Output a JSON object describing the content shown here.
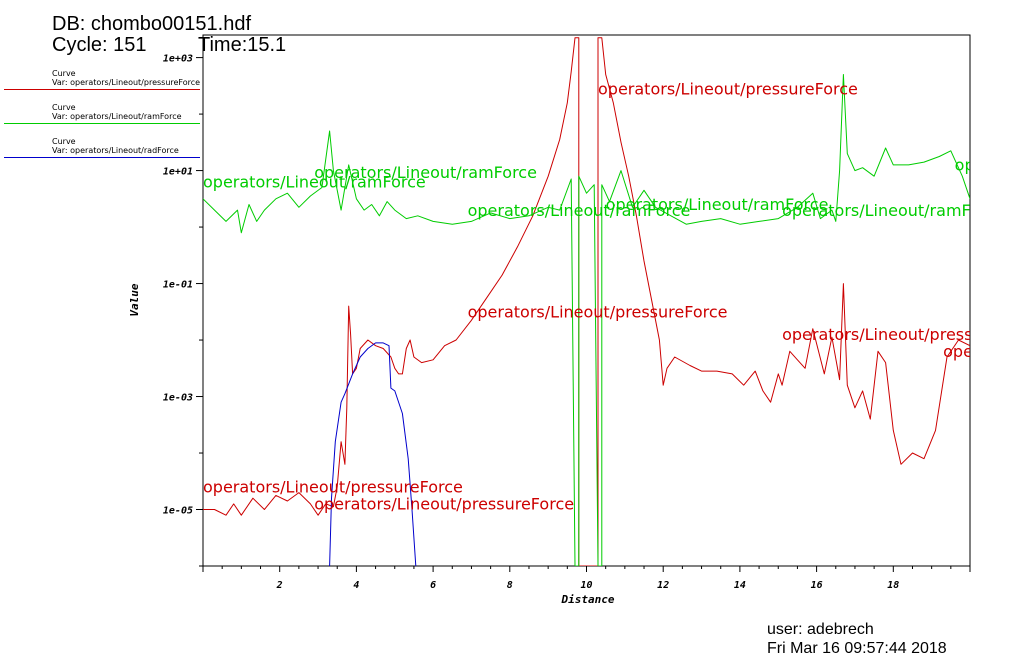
{
  "header": {
    "db_line": "DB: chombo00151.hdf",
    "cycle_line": "Cycle: 151",
    "time_line": "Time:15.1"
  },
  "legend": [
    {
      "kind": "Curve",
      "var": "Var: operators/Lineout/pressureForce",
      "color": "#ff0000"
    },
    {
      "kind": "Curve",
      "var": "Var: operators/Lineout/ramForce",
      "color": "#00ff00"
    },
    {
      "kind": "Curve",
      "var": "Var: operators/Lineout/radForce",
      "color": "#0000ff"
    }
  ],
  "footer": {
    "user": "user: adebrech",
    "date": "Fri Mar 16 09:57:44 2018"
  },
  "chart_data": {
    "type": "line",
    "xlabel": "Distance",
    "ylabel": "Value",
    "xlim": [
      0,
      20
    ],
    "ylog_range": [
      -6.0,
      3.4
    ],
    "yscale": "log",
    "x_ticks": [
      2,
      4,
      6,
      8,
      10,
      12,
      14,
      16,
      18
    ],
    "x_tick_labels": [
      "2",
      "4",
      "6",
      "8",
      "10",
      "12",
      "14",
      "16",
      "18"
    ],
    "y_ticks_log10": [
      3,
      1,
      -1,
      -3,
      -5
    ],
    "y_tick_labels": [
      "1e+03",
      "1e+01",
      "1e-01",
      "1e-03",
      "1e-05"
    ],
    "series": [
      {
        "name": "operators/Lineout/pressureForce",
        "color": "#cc0000",
        "points_log10": [
          [
            0,
            -5.0
          ],
          [
            0.3,
            -5.0
          ],
          [
            0.6,
            -5.1
          ],
          [
            0.8,
            -4.9
          ],
          [
            1.0,
            -5.1
          ],
          [
            1.3,
            -4.8
          ],
          [
            1.6,
            -5.0
          ],
          [
            1.9,
            -4.75
          ],
          [
            2.2,
            -4.85
          ],
          [
            2.5,
            -4.7
          ],
          [
            2.8,
            -4.9
          ],
          [
            3.0,
            -5.1
          ],
          [
            3.2,
            -4.9
          ],
          [
            3.4,
            -4.95
          ],
          [
            3.5,
            -4.6
          ],
          [
            3.6,
            -3.8
          ],
          [
            3.7,
            -4.2
          ],
          [
            3.75,
            -3.2
          ],
          [
            3.8,
            -1.4
          ],
          [
            3.85,
            -1.9
          ],
          [
            3.9,
            -2.6
          ],
          [
            4.0,
            -2.5
          ],
          [
            4.1,
            -2.15
          ],
          [
            4.3,
            -2.0
          ],
          [
            4.5,
            -2.1
          ],
          [
            4.7,
            -2.15
          ],
          [
            4.9,
            -2.3
          ],
          [
            5.0,
            -2.5
          ],
          [
            5.1,
            -2.6
          ],
          [
            5.2,
            -2.6
          ],
          [
            5.3,
            -2.15
          ],
          [
            5.4,
            -2.0
          ],
          [
            5.5,
            -2.3
          ],
          [
            5.7,
            -2.4
          ],
          [
            6.0,
            -2.35
          ],
          [
            6.3,
            -2.1
          ],
          [
            6.6,
            -2.0
          ],
          [
            7.0,
            -1.65
          ],
          [
            7.4,
            -1.25
          ],
          [
            7.8,
            -0.85
          ],
          [
            8.2,
            -0.35
          ],
          [
            8.6,
            0.2
          ],
          [
            9.0,
            0.9
          ],
          [
            9.3,
            1.55
          ],
          [
            9.5,
            2.2
          ],
          [
            9.6,
            2.75
          ],
          [
            9.7,
            3.35
          ],
          [
            9.8,
            3.35
          ],
          [
            9.8,
            -6.0
          ],
          [
            10.3,
            -6.0
          ],
          [
            10.3,
            3.35
          ],
          [
            10.4,
            3.35
          ],
          [
            10.5,
            2.7
          ],
          [
            10.7,
            2.2
          ],
          [
            10.9,
            1.5
          ],
          [
            11.1,
            0.9
          ],
          [
            11.3,
            0.2
          ],
          [
            11.5,
            -0.6
          ],
          [
            11.7,
            -1.3
          ],
          [
            11.9,
            -2.0
          ],
          [
            12.0,
            -2.8
          ],
          [
            12.1,
            -2.5
          ],
          [
            12.3,
            -2.3
          ],
          [
            12.7,
            -2.45
          ],
          [
            13.0,
            -2.55
          ],
          [
            13.4,
            -2.55
          ],
          [
            13.8,
            -2.6
          ],
          [
            14.1,
            -2.8
          ],
          [
            14.4,
            -2.55
          ],
          [
            14.6,
            -2.9
          ],
          [
            14.8,
            -3.1
          ],
          [
            15.0,
            -2.6
          ],
          [
            15.1,
            -2.8
          ],
          [
            15.3,
            -2.2
          ],
          [
            15.5,
            -2.35
          ],
          [
            15.7,
            -2.5
          ],
          [
            15.9,
            -1.8
          ],
          [
            16.2,
            -2.6
          ],
          [
            16.4,
            -1.95
          ],
          [
            16.6,
            -2.7
          ],
          [
            16.7,
            -1.0
          ],
          [
            16.8,
            -2.8
          ],
          [
            17.0,
            -3.2
          ],
          [
            17.2,
            -2.9
          ],
          [
            17.4,
            -3.4
          ],
          [
            17.6,
            -2.2
          ],
          [
            17.8,
            -2.4
          ],
          [
            18.0,
            -3.6
          ],
          [
            18.2,
            -4.2
          ],
          [
            18.5,
            -4.0
          ],
          [
            18.8,
            -4.1
          ],
          [
            19.1,
            -3.6
          ],
          [
            19.4,
            -2.3
          ],
          [
            19.7,
            -2.0
          ],
          [
            20.0,
            -2.1
          ]
        ]
      },
      {
        "name": "operators/Lineout/ramForce",
        "color": "#00cc00",
        "points_log10": [
          [
            0,
            0.5
          ],
          [
            0.3,
            0.3
          ],
          [
            0.6,
            0.1
          ],
          [
            0.9,
            0.3
          ],
          [
            1.0,
            -0.1
          ],
          [
            1.2,
            0.4
          ],
          [
            1.4,
            0.1
          ],
          [
            1.6,
            0.3
          ],
          [
            1.9,
            0.5
          ],
          [
            2.2,
            0.6
          ],
          [
            2.5,
            0.35
          ],
          [
            2.8,
            0.55
          ],
          [
            3.1,
            0.7
          ],
          [
            3.3,
            1.7
          ],
          [
            3.4,
            1.0
          ],
          [
            3.6,
            0.3
          ],
          [
            3.8,
            1.1
          ],
          [
            4.0,
            0.5
          ],
          [
            4.2,
            0.3
          ],
          [
            4.4,
            0.4
          ],
          [
            4.6,
            0.2
          ],
          [
            4.8,
            0.45
          ],
          [
            5.0,
            0.3
          ],
          [
            5.3,
            0.15
          ],
          [
            5.6,
            0.2
          ],
          [
            6.0,
            0.1
          ],
          [
            6.5,
            0.05
          ],
          [
            7.0,
            0.1
          ],
          [
            7.5,
            0.25
          ],
          [
            8.0,
            0.15
          ],
          [
            8.5,
            0.2
          ],
          [
            9.0,
            0.35
          ],
          [
            9.3,
            0.3
          ],
          [
            9.6,
            0.85
          ],
          [
            9.7,
            -6.0
          ],
          [
            9.8,
            -6.0
          ],
          [
            9.8,
            0.9
          ],
          [
            10.0,
            0.6
          ],
          [
            10.2,
            0.75
          ],
          [
            10.3,
            -6.0
          ],
          [
            10.4,
            -6.0
          ],
          [
            10.4,
            0.75
          ],
          [
            10.6,
            0.45
          ],
          [
            10.9,
            1.0
          ],
          [
            11.2,
            0.35
          ],
          [
            11.5,
            0.65
          ],
          [
            11.8,
            0.35
          ],
          [
            12.2,
            0.2
          ],
          [
            12.6,
            0.05
          ],
          [
            13.0,
            0.1
          ],
          [
            13.5,
            0.15
          ],
          [
            14.0,
            0.05
          ],
          [
            14.5,
            0.1
          ],
          [
            15.0,
            0.15
          ],
          [
            15.5,
            0.35
          ],
          [
            15.9,
            0.6
          ],
          [
            16.1,
            0.15
          ],
          [
            16.4,
            0.3
          ],
          [
            16.5,
            0.1
          ],
          [
            16.6,
            1.0
          ],
          [
            16.7,
            2.7
          ],
          [
            16.8,
            1.3
          ],
          [
            17.0,
            1.0
          ],
          [
            17.2,
            1.05
          ],
          [
            17.5,
            0.9
          ],
          [
            17.8,
            1.4
          ],
          [
            18.0,
            1.1
          ],
          [
            18.4,
            1.1
          ],
          [
            18.8,
            1.15
          ],
          [
            19.2,
            1.25
          ],
          [
            19.5,
            1.35
          ],
          [
            19.8,
            0.9
          ],
          [
            20.0,
            0.5
          ]
        ]
      },
      {
        "name": "operators/Lineout/radForce",
        "color": "#0000cc",
        "points_log10": [
          [
            3.3,
            -6.0
          ],
          [
            3.35,
            -4.8
          ],
          [
            3.45,
            -3.8
          ],
          [
            3.6,
            -3.1
          ],
          [
            3.7,
            -2.95
          ],
          [
            3.9,
            -2.6
          ],
          [
            4.1,
            -2.3
          ],
          [
            4.3,
            -2.15
          ],
          [
            4.5,
            -2.05
          ],
          [
            4.7,
            -2.05
          ],
          [
            4.85,
            -2.1
          ],
          [
            4.9,
            -2.85
          ],
          [
            5.0,
            -2.9
          ],
          [
            5.2,
            -3.3
          ],
          [
            5.35,
            -4.1
          ],
          [
            5.45,
            -5.0
          ],
          [
            5.55,
            -6.0
          ]
        ]
      }
    ],
    "curve_labels": [
      {
        "text": "operators/Lineout/pressureForce",
        "color": "#cc0000",
        "x": 10.3,
        "y_log10": 2.35
      },
      {
        "text": "operators/Lineout/pressureForce",
        "color": "#cc0000",
        "x": 6.9,
        "y_log10": -1.6
      },
      {
        "text": "operators/Lineout/pressureForce",
        "color": "#cc0000",
        "x": 15.1,
        "y_log10": -2.0
      },
      {
        "text": "operators/Lineout/pressureForce",
        "color": "#cc0000",
        "x": 19.3,
        "y_log10": -2.3
      },
      {
        "text": "operators/Lineout/pressureForce",
        "color": "#cc0000",
        "x": 0.0,
        "y_log10": -4.7
      },
      {
        "text": "operators/Lineout/pressureForce",
        "color": "#cc0000",
        "x": 2.9,
        "y_log10": -5.0
      },
      {
        "text": "operators/Lineout/ramForce",
        "color": "#00cc00",
        "x": 0.0,
        "y_log10": 0.7
      },
      {
        "text": "operators/Lineout/ramForce",
        "color": "#00cc00",
        "x": 2.9,
        "y_log10": 0.87
      },
      {
        "text": "operators/Lineout/ramForce",
        "color": "#00cc00",
        "x": 6.9,
        "y_log10": 0.2
      },
      {
        "text": "operators/Lineout/ramForce",
        "color": "#00cc00",
        "x": 10.5,
        "y_log10": 0.3
      },
      {
        "text": "operators/Lineout/ramForce",
        "color": "#00cc00",
        "x": 15.1,
        "y_log10": 0.2
      },
      {
        "text": "operators/Lineout/ramForce",
        "color": "#00cc00",
        "x": 19.6,
        "y_log10": 1.0
      }
    ]
  }
}
